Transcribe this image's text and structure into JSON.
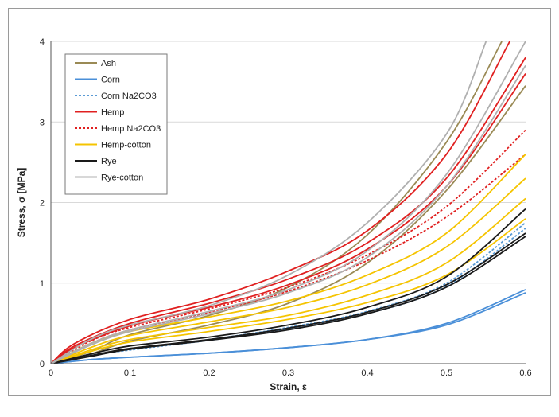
{
  "chart_data": {
    "type": "line",
    "xlabel": "Strain, ε",
    "ylabel": "Stress, σ [MPa]",
    "xlim": [
      0,
      0.6
    ],
    "ylim": [
      0,
      4
    ],
    "xticks": [
      "0",
      "0.1",
      "0.2",
      "0.3",
      "0.4",
      "0.5",
      "0.6"
    ],
    "yticks": [
      "0",
      "1",
      "2",
      "3",
      "4"
    ],
    "grid": "horizontal",
    "legend_position": "top-left",
    "series": [
      {
        "name": "Ash",
        "color": "#9a8a55",
        "dash": false,
        "curves": [
          {
            "x": [
              0,
              0.05,
              0.1,
              0.2,
              0.3,
              0.4,
              0.5,
              0.6
            ],
            "y": [
              0,
              0.12,
              0.28,
              0.48,
              0.75,
              1.25,
              2.15,
              3.45
            ]
          },
          {
            "x": [
              0,
              0.05,
              0.1,
              0.2,
              0.3,
              0.4,
              0.5,
              0.57
            ],
            "y": [
              0,
              0.15,
              0.36,
              0.6,
              0.95,
              1.6,
              2.75,
              4.0
            ]
          }
        ]
      },
      {
        "name": "Corn",
        "color": "#4a8fd8",
        "dash": false,
        "curves": [
          {
            "x": [
              0,
              0.05,
              0.1,
              0.2,
              0.3,
              0.4,
              0.5,
              0.6
            ],
            "y": [
              0,
              0.05,
              0.08,
              0.13,
              0.2,
              0.3,
              0.5,
              0.92
            ]
          },
          {
            "x": [
              0,
              0.05,
              0.1,
              0.2,
              0.3,
              0.4,
              0.5,
              0.6
            ],
            "y": [
              0,
              0.05,
              0.08,
              0.13,
              0.2,
              0.3,
              0.48,
              0.88
            ]
          }
        ]
      },
      {
        "name": "Corn Na2CO3",
        "color": "#5b9bd5",
        "dash": true,
        "curves": [
          {
            "x": [
              0,
              0.05,
              0.1,
              0.2,
              0.3,
              0.4,
              0.5,
              0.6
            ],
            "y": [
              0,
              0.1,
              0.18,
              0.3,
              0.45,
              0.65,
              1.0,
              1.75
            ]
          },
          {
            "x": [
              0,
              0.05,
              0.1,
              0.2,
              0.3,
              0.4,
              0.5,
              0.6
            ],
            "y": [
              0,
              0.1,
              0.17,
              0.29,
              0.43,
              0.62,
              0.96,
              1.68
            ]
          }
        ]
      },
      {
        "name": "Hemp",
        "color": "#e02020",
        "dash": false,
        "curves": [
          {
            "x": [
              0,
              0.03,
              0.1,
              0.2,
              0.3,
              0.4,
              0.5,
              0.58
            ],
            "y": [
              0,
              0.25,
              0.55,
              0.8,
              1.15,
              1.65,
              2.6,
              4.0
            ]
          },
          {
            "x": [
              0,
              0.03,
              0.1,
              0.2,
              0.3,
              0.4,
              0.5,
              0.6
            ],
            "y": [
              0,
              0.22,
              0.5,
              0.75,
              1.05,
              1.5,
              2.3,
              3.8
            ]
          },
          {
            "x": [
              0,
              0.03,
              0.1,
              0.2,
              0.3,
              0.4,
              0.5,
              0.6
            ],
            "y": [
              0,
              0.2,
              0.47,
              0.7,
              0.98,
              1.42,
              2.2,
              3.6
            ]
          }
        ]
      },
      {
        "name": "Hemp Na2CO3",
        "color": "#e02020",
        "dash": true,
        "curves": [
          {
            "x": [
              0,
              0.05,
              0.1,
              0.2,
              0.3,
              0.4,
              0.5,
              0.6
            ],
            "y": [
              0,
              0.28,
              0.45,
              0.68,
              0.95,
              1.35,
              1.95,
              2.9
            ]
          },
          {
            "x": [
              0,
              0.05,
              0.1,
              0.2,
              0.3,
              0.4,
              0.5,
              0.6
            ],
            "y": [
              0,
              0.25,
              0.42,
              0.64,
              0.9,
              1.28,
              1.82,
              2.6
            ]
          }
        ]
      },
      {
        "name": "Hemp-cotton",
        "color": "#f5c400",
        "dash": false,
        "curves": [
          {
            "x": [
              0,
              0.05,
              0.1,
              0.2,
              0.3,
              0.4,
              0.5,
              0.6
            ],
            "y": [
              0,
              0.25,
              0.4,
              0.58,
              0.78,
              1.1,
              1.62,
              2.6
            ]
          },
          {
            "x": [
              0,
              0.05,
              0.1,
              0.2,
              0.3,
              0.4,
              0.5,
              0.6
            ],
            "y": [
              0,
              0.2,
              0.35,
              0.52,
              0.7,
              0.98,
              1.45,
              2.3
            ]
          },
          {
            "x": [
              0,
              0.05,
              0.1,
              0.2,
              0.3,
              0.4,
              0.5,
              0.6
            ],
            "y": [
              0,
              0.17,
              0.3,
              0.45,
              0.6,
              0.85,
              1.25,
              2.05
            ]
          },
          {
            "x": [
              0,
              0.05,
              0.1,
              0.2,
              0.3,
              0.4,
              0.5,
              0.6
            ],
            "y": [
              0,
              0.15,
              0.27,
              0.4,
              0.55,
              0.76,
              1.1,
              1.8
            ]
          }
        ]
      },
      {
        "name": "Rye",
        "color": "#1a1a1a",
        "dash": false,
        "curves": [
          {
            "x": [
              0,
              0.05,
              0.1,
              0.2,
              0.3,
              0.4,
              0.5,
              0.6
            ],
            "y": [
              0,
              0.12,
              0.22,
              0.33,
              0.48,
              0.7,
              1.08,
              1.92
            ]
          },
          {
            "x": [
              0,
              0.05,
              0.1,
              0.2,
              0.3,
              0.4,
              0.5,
              0.6
            ],
            "y": [
              0,
              0.1,
              0.19,
              0.3,
              0.44,
              0.64,
              0.98,
              1.62
            ]
          },
          {
            "x": [
              0,
              0.05,
              0.1,
              0.2,
              0.3,
              0.4,
              0.5,
              0.6
            ],
            "y": [
              0,
              0.09,
              0.18,
              0.29,
              0.42,
              0.62,
              0.95,
              1.58
            ]
          }
        ]
      },
      {
        "name": "Rye-cotton",
        "color": "#b0b0b0",
        "dash": false,
        "curves": [
          {
            "x": [
              0,
              0.05,
              0.1,
              0.2,
              0.3,
              0.4,
              0.5,
              0.55
            ],
            "y": [
              0,
              0.3,
              0.48,
              0.72,
              1.1,
              1.75,
              2.85,
              4.0
            ]
          },
          {
            "x": [
              0,
              0.05,
              0.1,
              0.2,
              0.3,
              0.4,
              0.5,
              0.6
            ],
            "y": [
              0,
              0.25,
              0.42,
              0.65,
              0.92,
              1.4,
              2.35,
              4.0
            ]
          },
          {
            "x": [
              0,
              0.05,
              0.1,
              0.2,
              0.3,
              0.4,
              0.5,
              0.6
            ],
            "y": [
              0,
              0.23,
              0.4,
              0.62,
              0.88,
              1.32,
              2.2,
              3.7
            ]
          }
        ]
      }
    ]
  }
}
